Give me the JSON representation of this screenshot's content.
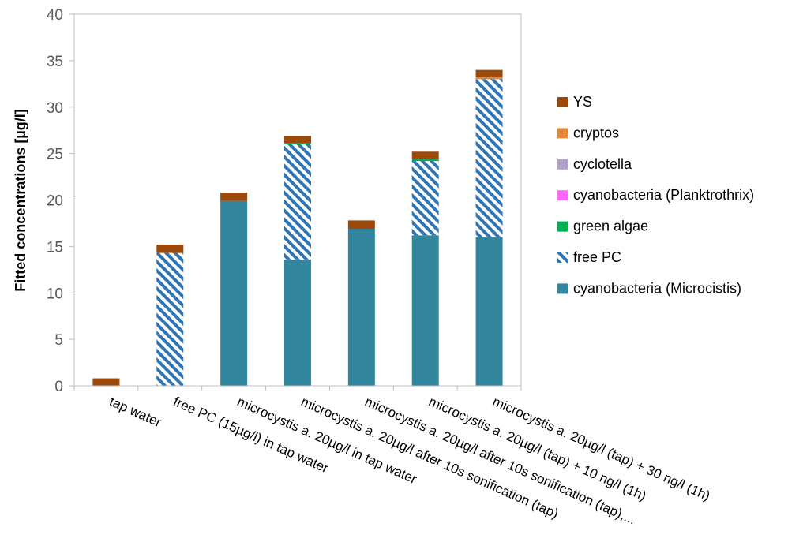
{
  "chart_data": {
    "type": "bar",
    "stacked": true,
    "ylabel": "Fitted concentrations [µg/l]",
    "ylim": [
      0,
      40
    ],
    "yticks": [
      0,
      5,
      10,
      15,
      20,
      25,
      30,
      35,
      40
    ],
    "grid": false,
    "legend_position": "right",
    "categories": [
      "tap water",
      "free PC (15µg/l) in tap water",
      "microcystis a. 20µg/l in tap water",
      "microcystis a. 20µg/l after 10s sonification (tap)",
      "microcystis a. 20µg/l after 10s sonification (tap),...",
      "microcystis a. 20µg/l (tap)  + 10 ng/l (1h)",
      "microcystis a. 20µg/l (tap)  + 30 ng/l (1h)"
    ],
    "series": [
      {
        "name": "cyanobacteria (Microcistis)",
        "color": "#31859c",
        "pattern": "solid",
        "values": [
          0,
          0,
          19.9,
          13.6,
          16.9,
          16.2,
          16.0
        ]
      },
      {
        "name": "free PC",
        "color": "#2e75b6",
        "pattern": "hatch",
        "values": [
          0,
          14.3,
          0,
          12.4,
          0,
          8.0,
          17.0
        ]
      },
      {
        "name": "green algae",
        "color": "#00b050",
        "pattern": "solid",
        "values": [
          0,
          0,
          0,
          0.1,
          0,
          0.2,
          0
        ]
      },
      {
        "name": "cyanobacteria (Planktrothrix)",
        "color": "#ff66ff",
        "pattern": "solid",
        "values": [
          0,
          0,
          0,
          0,
          0,
          0,
          0
        ]
      },
      {
        "name": "cyclotella",
        "color": "#b1a0c7",
        "pattern": "solid",
        "values": [
          0,
          0,
          0,
          0,
          0,
          0,
          0
        ]
      },
      {
        "name": "cryptos",
        "color": "#e3883a",
        "pattern": "solid",
        "values": [
          0,
          0,
          0,
          0,
          0,
          0,
          0.2
        ]
      },
      {
        "name": "YS",
        "color": "#9c4a0c",
        "pattern": "solid",
        "values": [
          0.8,
          0.9,
          0.9,
          0.8,
          0.9,
          0.8,
          0.8
        ]
      }
    ]
  }
}
